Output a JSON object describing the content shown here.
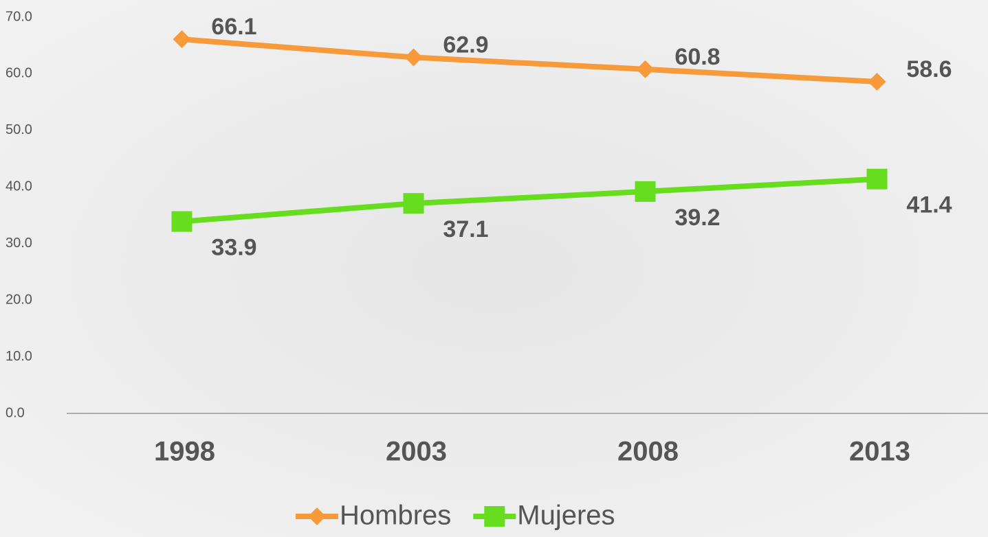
{
  "chart_data": {
    "type": "line",
    "categories": [
      "1998",
      "2003",
      "2008",
      "2013"
    ],
    "series": [
      {
        "name": "Hombres",
        "color": "#f79a3a",
        "marker": "diamond",
        "values": [
          66.1,
          62.9,
          60.8,
          58.6
        ]
      },
      {
        "name": "Mujeres",
        "color": "#66dd1e",
        "marker": "square",
        "values": [
          33.9,
          37.1,
          39.2,
          41.4
        ]
      }
    ],
    "ylim": [
      0,
      70
    ],
    "yticks": [
      {
        "value": 0,
        "label": "0.0"
      },
      {
        "value": 10,
        "label": "10.0"
      },
      {
        "value": 20,
        "label": "20.0"
      },
      {
        "value": 30,
        "label": "30.0"
      },
      {
        "value": 40,
        "label": "40.0"
      },
      {
        "value": 50,
        "label": "50.0"
      },
      {
        "value": 60,
        "label": "60.0"
      },
      {
        "value": 70,
        "label": "70.0"
      }
    ],
    "grid": false,
    "legend": "bottom"
  }
}
